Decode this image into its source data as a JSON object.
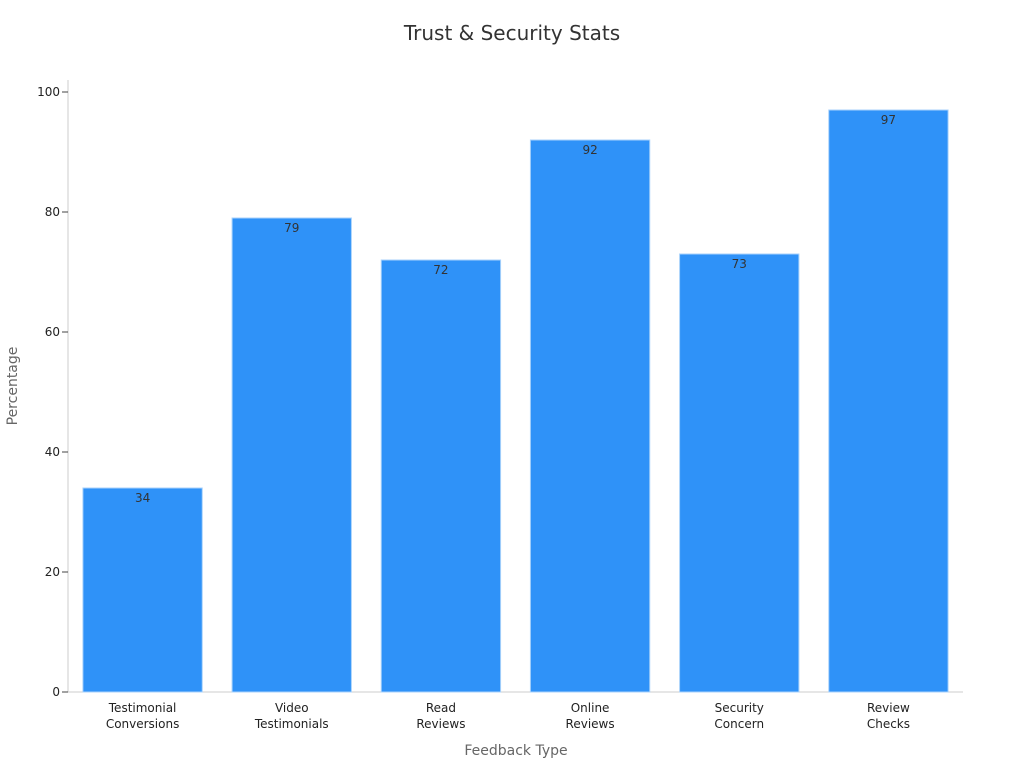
{
  "chart_data": {
    "type": "bar",
    "title": "Trust & Security Stats",
    "xlabel": "Feedback Type",
    "ylabel": "Percentage",
    "categories": [
      [
        "Testimonial",
        "Conversions"
      ],
      [
        "Video",
        "Testimonials"
      ],
      [
        "Read",
        "Reviews"
      ],
      [
        "Online",
        "Reviews"
      ],
      [
        "Security",
        "Concern"
      ],
      [
        "Review",
        "Checks"
      ]
    ],
    "values": [
      34,
      79,
      72,
      92,
      73,
      97
    ],
    "ylim": [
      0,
      100
    ],
    "yticks": [
      0,
      20,
      40,
      60,
      80,
      100
    ],
    "grid": false,
    "bar_color": "#2f92f8",
    "bar_edge_color": "#a9d2fb"
  }
}
